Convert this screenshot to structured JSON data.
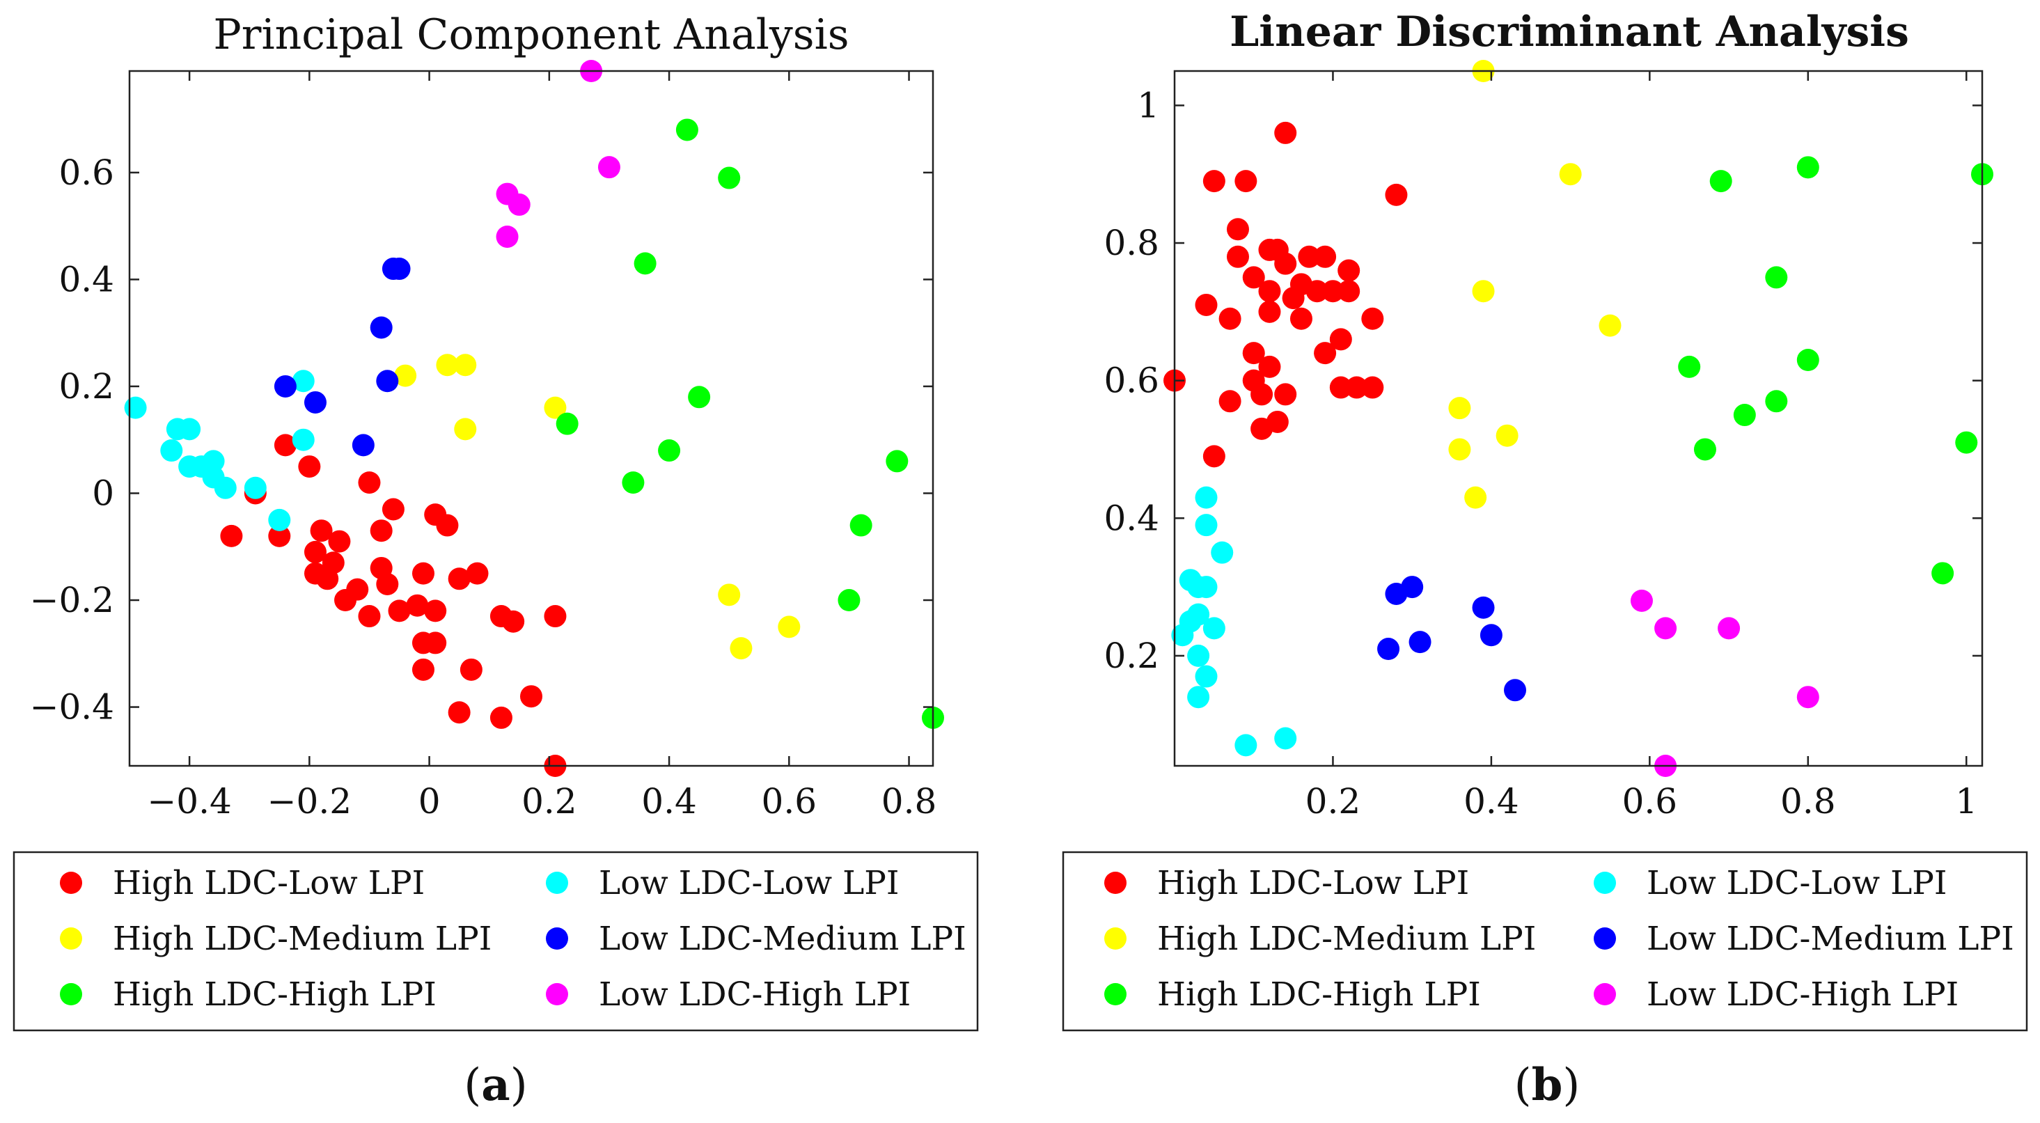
{
  "chart_data": [
    {
      "type": "scatter",
      "title": "Principal Component Analysis",
      "title_bold": false,
      "caption": "a",
      "xlabel": "",
      "ylabel": "",
      "xlim": [
        -0.5,
        0.84
      ],
      "ylim": [
        -0.51,
        0.79
      ],
      "xticks": [
        -0.4,
        -0.2,
        0,
        0.2,
        0.4,
        0.6,
        0.8
      ],
      "xtick_labels": [
        "−0.4",
        "−0.2",
        "0",
        "0.2",
        "0.4",
        "0.6",
        "0.8"
      ],
      "yticks": [
        -0.4,
        -0.2,
        0,
        0.2,
        0.4,
        0.6
      ],
      "ytick_labels": [
        "−0.4",
        "−0.2",
        "0",
        "0.2",
        "0.4",
        "0.6"
      ],
      "grid": false,
      "legend_placement": "below",
      "series": [
        {
          "name": "High LDC-Low LPI",
          "color": "#ff0000",
          "points": [
            [
              -0.29,
              0.0
            ],
            [
              -0.33,
              -0.08
            ],
            [
              -0.25,
              -0.08
            ],
            [
              -0.24,
              0.09
            ],
            [
              -0.2,
              0.05
            ],
            [
              -0.18,
              -0.07
            ],
            [
              -0.19,
              -0.11
            ],
            [
              -0.19,
              -0.15
            ],
            [
              -0.16,
              -0.13
            ],
            [
              -0.15,
              -0.09
            ],
            [
              -0.17,
              -0.16
            ],
            [
              -0.14,
              -0.2
            ],
            [
              -0.12,
              -0.18
            ],
            [
              -0.1,
              -0.23
            ],
            [
              -0.08,
              -0.14
            ],
            [
              -0.08,
              -0.07
            ],
            [
              -0.06,
              -0.03
            ],
            [
              -0.1,
              0.02
            ],
            [
              -0.07,
              -0.17
            ],
            [
              -0.05,
              -0.22
            ],
            [
              -0.02,
              -0.21
            ],
            [
              -0.01,
              -0.15
            ],
            [
              0.01,
              -0.04
            ],
            [
              0.03,
              -0.06
            ],
            [
              0.01,
              -0.22
            ],
            [
              0.01,
              -0.28
            ],
            [
              -0.01,
              -0.28
            ],
            [
              -0.01,
              -0.33
            ],
            [
              0.05,
              -0.16
            ],
            [
              0.08,
              -0.15
            ],
            [
              0.07,
              -0.33
            ],
            [
              0.05,
              -0.41
            ],
            [
              0.12,
              -0.42
            ],
            [
              0.17,
              -0.38
            ],
            [
              0.12,
              -0.23
            ],
            [
              0.14,
              -0.24
            ],
            [
              0.21,
              -0.23
            ],
            [
              0.21,
              -0.51
            ]
          ]
        },
        {
          "name": "High LDC-Medium LPI",
          "color": "#ffff00",
          "points": [
            [
              -0.04,
              0.22
            ],
            [
              0.03,
              0.24
            ],
            [
              0.06,
              0.24
            ],
            [
              0.06,
              0.12
            ],
            [
              0.21,
              0.16
            ],
            [
              0.5,
              -0.19
            ],
            [
              0.52,
              -0.29
            ],
            [
              0.6,
              -0.25
            ]
          ]
        },
        {
          "name": "High LDC-High LPI",
          "color": "#00ff00",
          "points": [
            [
              0.43,
              0.68
            ],
            [
              0.5,
              0.59
            ],
            [
              0.36,
              0.43
            ],
            [
              0.45,
              0.18
            ],
            [
              0.23,
              0.13
            ],
            [
              0.4,
              0.08
            ],
            [
              0.34,
              0.02
            ],
            [
              0.78,
              0.06
            ],
            [
              0.72,
              -0.06
            ],
            [
              0.7,
              -0.2
            ],
            [
              0.84,
              -0.42
            ]
          ]
        },
        {
          "name": "Low LDC-Low LPI",
          "color": "#00ffff",
          "points": [
            [
              -0.49,
              0.16
            ],
            [
              -0.42,
              0.12
            ],
            [
              -0.4,
              0.12
            ],
            [
              -0.43,
              0.08
            ],
            [
              -0.4,
              0.05
            ],
            [
              -0.38,
              0.05
            ],
            [
              -0.36,
              0.06
            ],
            [
              -0.36,
              0.03
            ],
            [
              -0.34,
              0.01
            ],
            [
              -0.29,
              0.01
            ],
            [
              -0.25,
              -0.05
            ],
            [
              -0.21,
              0.21
            ],
            [
              -0.21,
              0.1
            ]
          ]
        },
        {
          "name": "Low LDC-Medium LPI",
          "color": "#0000ff",
          "points": [
            [
              -0.24,
              0.2
            ],
            [
              -0.19,
              0.17
            ],
            [
              -0.11,
              0.09
            ],
            [
              -0.06,
              0.42
            ],
            [
              -0.05,
              0.42
            ],
            [
              -0.08,
              0.31
            ],
            [
              -0.07,
              0.21
            ]
          ]
        },
        {
          "name": "Low LDC-High LPI",
          "color": "#ff00ff",
          "points": [
            [
              0.27,
              0.79
            ],
            [
              0.3,
              0.61
            ],
            [
              0.13,
              0.56
            ],
            [
              0.15,
              0.54
            ],
            [
              0.13,
              0.48
            ]
          ]
        }
      ]
    },
    {
      "type": "scatter",
      "title": "Linear Discriminant Analysis",
      "title_bold": true,
      "caption": "b",
      "xlabel": "",
      "ylabel": "",
      "xlim": [
        0,
        1.02
      ],
      "ylim": [
        0.04,
        1.05
      ],
      "xticks": [
        0.2,
        0.4,
        0.6,
        0.8,
        1.0
      ],
      "xtick_labels": [
        "0.2",
        "0.4",
        "0.6",
        "0.8",
        "1"
      ],
      "yticks": [
        0.2,
        0.4,
        0.6,
        0.8,
        1.0
      ],
      "ytick_labels": [
        "0.2",
        "0.4",
        "0.6",
        "0.8",
        "1"
      ],
      "grid": false,
      "legend_placement": "below",
      "series": [
        {
          "name": "High LDC-Low LPI",
          "color": "#ff0000",
          "points": [
            [
              0.0,
              0.6
            ],
            [
              0.05,
              0.89
            ],
            [
              0.09,
              0.89
            ],
            [
              0.14,
              0.96
            ],
            [
              0.28,
              0.87
            ],
            [
              0.08,
              0.82
            ],
            [
              0.08,
              0.78
            ],
            [
              0.12,
              0.79
            ],
            [
              0.13,
              0.79
            ],
            [
              0.14,
              0.77
            ],
            [
              0.17,
              0.78
            ],
            [
              0.19,
              0.78
            ],
            [
              0.22,
              0.76
            ],
            [
              0.1,
              0.75
            ],
            [
              0.12,
              0.73
            ],
            [
              0.15,
              0.72
            ],
            [
              0.16,
              0.74
            ],
            [
              0.18,
              0.73
            ],
            [
              0.2,
              0.73
            ],
            [
              0.22,
              0.73
            ],
            [
              0.04,
              0.71
            ],
            [
              0.07,
              0.69
            ],
            [
              0.12,
              0.7
            ],
            [
              0.16,
              0.69
            ],
            [
              0.25,
              0.69
            ],
            [
              0.1,
              0.64
            ],
            [
              0.12,
              0.62
            ],
            [
              0.19,
              0.64
            ],
            [
              0.21,
              0.66
            ],
            [
              0.1,
              0.6
            ],
            [
              0.11,
              0.58
            ],
            [
              0.14,
              0.58
            ],
            [
              0.21,
              0.59
            ],
            [
              0.23,
              0.59
            ],
            [
              0.25,
              0.59
            ],
            [
              0.07,
              0.57
            ],
            [
              0.11,
              0.53
            ],
            [
              0.13,
              0.54
            ],
            [
              0.05,
              0.49
            ]
          ]
        },
        {
          "name": "High LDC-Medium LPI",
          "color": "#ffff00",
          "points": [
            [
              0.39,
              1.05
            ],
            [
              0.5,
              0.9
            ],
            [
              0.39,
              0.73
            ],
            [
              0.55,
              0.68
            ],
            [
              0.36,
              0.56
            ],
            [
              0.36,
              0.5
            ],
            [
              0.42,
              0.52
            ],
            [
              0.38,
              0.43
            ]
          ]
        },
        {
          "name": "High LDC-High LPI",
          "color": "#00ff00",
          "points": [
            [
              0.69,
              0.89
            ],
            [
              0.8,
              0.91
            ],
            [
              1.02,
              0.9
            ],
            [
              0.76,
              0.75
            ],
            [
              0.65,
              0.62
            ],
            [
              0.8,
              0.63
            ],
            [
              0.72,
              0.55
            ],
            [
              0.76,
              0.57
            ],
            [
              0.67,
              0.5
            ],
            [
              1.0,
              0.51
            ],
            [
              0.97,
              0.32
            ]
          ]
        },
        {
          "name": "Low LDC-Low LPI",
          "color": "#00ffff",
          "points": [
            [
              0.04,
              0.43
            ],
            [
              0.04,
              0.39
            ],
            [
              0.06,
              0.35
            ],
            [
              0.02,
              0.31
            ],
            [
              0.04,
              0.3
            ],
            [
              0.03,
              0.3
            ],
            [
              0.03,
              0.26
            ],
            [
              0.02,
              0.25
            ],
            [
              0.01,
              0.23
            ],
            [
              0.05,
              0.24
            ],
            [
              0.03,
              0.2
            ],
            [
              0.04,
              0.17
            ],
            [
              0.03,
              0.14
            ],
            [
              0.09,
              0.07
            ],
            [
              0.14,
              0.08
            ]
          ]
        },
        {
          "name": "Low LDC-Medium LPI",
          "color": "#0000ff",
          "points": [
            [
              0.28,
              0.29
            ],
            [
              0.3,
              0.3
            ],
            [
              0.39,
              0.27
            ],
            [
              0.4,
              0.23
            ],
            [
              0.27,
              0.21
            ],
            [
              0.31,
              0.22
            ],
            [
              0.43,
              0.15
            ]
          ]
        },
        {
          "name": "Low LDC-High LPI",
          "color": "#ff00ff",
          "points": [
            [
              0.59,
              0.28
            ],
            [
              0.62,
              0.24
            ],
            [
              0.7,
              0.24
            ],
            [
              0.8,
              0.14
            ],
            [
              0.62,
              0.04
            ]
          ]
        }
      ]
    }
  ]
}
